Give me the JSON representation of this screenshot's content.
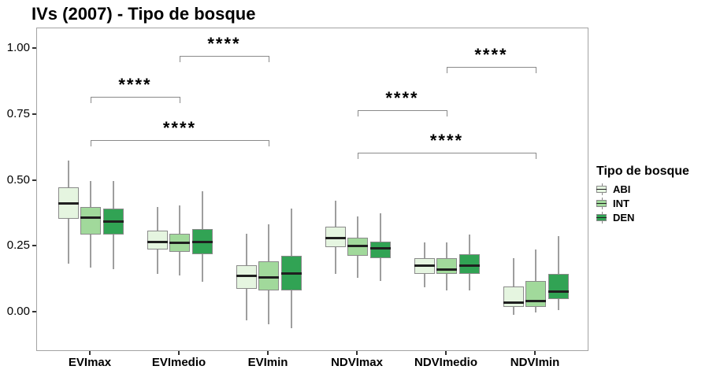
{
  "title": "IVs (2007) - Tipo de bosque",
  "legend": {
    "title": "Tipo de bosque",
    "items": [
      {
        "label": "ABI",
        "color": "#e5f5e0"
      },
      {
        "label": "INT",
        "color": "#a1d99b"
      },
      {
        "label": "DEN",
        "color": "#31a354"
      }
    ]
  },
  "colors": {
    "box_border": "#8a8a8a",
    "median": "#1f1f1f",
    "whisker": "#9e9e9e",
    "panel_border": "#a3a3a3",
    "bracket": "#8a8a8a",
    "text": "#000000"
  },
  "chart_data": {
    "type": "boxplot",
    "title": "IVs (2007) - Tipo de bosque",
    "categories": [
      "EVImax",
      "EVImedio",
      "EVImin",
      "NDVImax",
      "NDVImedio",
      "NDVImin"
    ],
    "y_ticks": [
      {
        "label": "1.00",
        "value": 1.0
      },
      {
        "label": "0.75",
        "value": 0.75
      },
      {
        "label": "0.50",
        "value": 0.5
      },
      {
        "label": "0.25",
        "value": 0.25
      },
      {
        "label": "0.00",
        "value": 0.0
      }
    ],
    "ylim": [
      -0.15,
      1.09
    ],
    "grid": false,
    "legend_position": "right",
    "legend_title": "Tipo de bosque",
    "series": [
      {
        "name": "ABI",
        "color": "#e5f5e0",
        "boxes": [
          {
            "low": 0.185,
            "q1": 0.355,
            "median": 0.415,
            "q3": 0.475,
            "high": 0.575
          },
          {
            "low": 0.145,
            "q1": 0.24,
            "median": 0.27,
            "q3": 0.31,
            "high": 0.4
          },
          {
            "low": -0.03,
            "q1": 0.09,
            "median": 0.14,
            "q3": 0.18,
            "high": 0.3
          },
          {
            "low": 0.145,
            "q1": 0.248,
            "median": 0.285,
            "q3": 0.325,
            "high": 0.425
          },
          {
            "low": 0.095,
            "q1": 0.145,
            "median": 0.18,
            "q3": 0.205,
            "high": 0.265
          },
          {
            "low": -0.01,
            "q1": 0.02,
            "median": 0.04,
            "q3": 0.1,
            "high": 0.205
          }
        ]
      },
      {
        "name": "INT",
        "color": "#a1d99b",
        "boxes": [
          {
            "low": 0.17,
            "q1": 0.295,
            "median": 0.36,
            "q3": 0.4,
            "high": 0.5
          },
          {
            "low": 0.14,
            "q1": 0.23,
            "median": 0.265,
            "q3": 0.3,
            "high": 0.405
          },
          {
            "low": -0.045,
            "q1": 0.085,
            "median": 0.135,
            "q3": 0.195,
            "high": 0.335
          },
          {
            "low": 0.13,
            "q1": 0.215,
            "median": 0.255,
            "q3": 0.285,
            "high": 0.365
          },
          {
            "low": 0.085,
            "q1": 0.145,
            "median": 0.165,
            "q3": 0.205,
            "high": 0.265
          },
          {
            "low": 0.0,
            "q1": 0.02,
            "median": 0.045,
            "q3": 0.12,
            "high": 0.24
          }
        ]
      },
      {
        "name": "DEN",
        "color": "#31a354",
        "boxes": [
          {
            "low": 0.165,
            "q1": 0.295,
            "median": 0.345,
            "q3": 0.395,
            "high": 0.5
          },
          {
            "low": 0.115,
            "q1": 0.22,
            "median": 0.27,
            "q3": 0.315,
            "high": 0.46
          },
          {
            "low": -0.06,
            "q1": 0.085,
            "median": 0.15,
            "q3": 0.215,
            "high": 0.395
          },
          {
            "low": 0.12,
            "q1": 0.205,
            "median": 0.245,
            "q3": 0.27,
            "high": 0.375
          },
          {
            "low": 0.085,
            "q1": 0.145,
            "median": 0.18,
            "q3": 0.22,
            "high": 0.295
          },
          {
            "low": 0.01,
            "q1": 0.05,
            "median": 0.08,
            "q3": 0.145,
            "high": 0.29
          }
        ]
      }
    ],
    "significance_brackets": [
      {
        "group1": "EVImedio",
        "group2": "EVImin",
        "label": "****",
        "y": 0.973
      },
      {
        "group1": "EVImax",
        "group2": "EVImedio",
        "label": "****",
        "y": 0.818
      },
      {
        "group1": "EVImax",
        "group2": "EVImin",
        "label": "****",
        "y": 0.654
      },
      {
        "group1": "NDVImedio",
        "group2": "NDVImin",
        "label": "****",
        "y": 0.931
      },
      {
        "group1": "NDVImax",
        "group2": "NDVImedio",
        "label": "****",
        "y": 0.767
      },
      {
        "group1": "NDVImax",
        "group2": "NDVImin",
        "label": "****",
        "y": 0.606
      }
    ]
  }
}
